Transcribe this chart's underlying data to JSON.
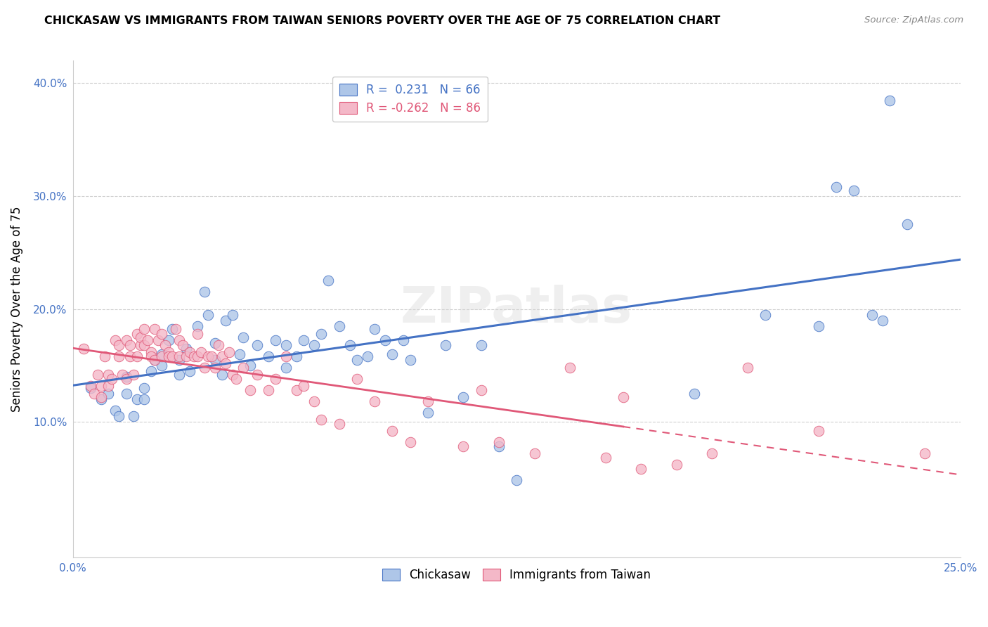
{
  "title": "CHICKASAW VS IMMIGRANTS FROM TAIWAN SENIORS POVERTY OVER THE AGE OF 75 CORRELATION CHART",
  "source": "Source: ZipAtlas.com",
  "ylabel": "Seniors Poverty Over the Age of 75",
  "xlim": [
    0.0,
    0.25
  ],
  "ylim": [
    -0.02,
    0.42
  ],
  "yticks": [
    0.1,
    0.2,
    0.3,
    0.4
  ],
  "ytick_labels": [
    "10.0%",
    "20.0%",
    "30.0%",
    "40.0%"
  ],
  "xticks": [
    0.0,
    0.05,
    0.1,
    0.15,
    0.2,
    0.25
  ],
  "xtick_labels": [
    "0.0%",
    "",
    "",
    "",
    "",
    "25.0%"
  ],
  "series1_label": "Chickasaw",
  "series2_label": "Immigrants from Taiwan",
  "R1": 0.231,
  "N1": 66,
  "R2": -0.262,
  "N2": 86,
  "color1": "#aec6e8",
  "color2": "#f4b8c8",
  "line_color1": "#4472C4",
  "line_color2": "#E05878",
  "background_color": "#ffffff",
  "grid_color": "#d0d0d0",
  "scatter1_x": [
    0.005,
    0.008,
    0.01,
    0.012,
    0.013,
    0.015,
    0.015,
    0.017,
    0.018,
    0.02,
    0.02,
    0.022,
    0.023,
    0.025,
    0.025,
    0.027,
    0.028,
    0.03,
    0.03,
    0.032,
    0.033,
    0.035,
    0.037,
    0.038,
    0.04,
    0.04,
    0.042,
    0.043,
    0.045,
    0.047,
    0.048,
    0.05,
    0.052,
    0.055,
    0.057,
    0.06,
    0.06,
    0.063,
    0.065,
    0.068,
    0.07,
    0.072,
    0.075,
    0.078,
    0.08,
    0.083,
    0.085,
    0.088,
    0.09,
    0.093,
    0.095,
    0.1,
    0.105,
    0.11,
    0.115,
    0.12,
    0.125,
    0.175,
    0.195,
    0.21,
    0.215,
    0.22,
    0.225,
    0.228,
    0.23,
    0.235
  ],
  "scatter1_y": [
    0.13,
    0.12,
    0.125,
    0.11,
    0.105,
    0.14,
    0.125,
    0.105,
    0.12,
    0.13,
    0.12,
    0.145,
    0.155,
    0.16,
    0.15,
    0.172,
    0.182,
    0.142,
    0.155,
    0.165,
    0.145,
    0.185,
    0.215,
    0.195,
    0.17,
    0.155,
    0.142,
    0.19,
    0.195,
    0.16,
    0.175,
    0.15,
    0.168,
    0.158,
    0.172,
    0.148,
    0.168,
    0.158,
    0.172,
    0.168,
    0.178,
    0.225,
    0.185,
    0.168,
    0.155,
    0.158,
    0.182,
    0.172,
    0.16,
    0.172,
    0.155,
    0.108,
    0.168,
    0.122,
    0.168,
    0.078,
    0.048,
    0.125,
    0.195,
    0.185,
    0.308,
    0.305,
    0.195,
    0.19,
    0.385,
    0.275
  ],
  "scatter2_x": [
    0.003,
    0.005,
    0.006,
    0.007,
    0.008,
    0.008,
    0.009,
    0.01,
    0.01,
    0.011,
    0.012,
    0.013,
    0.013,
    0.014,
    0.015,
    0.015,
    0.016,
    0.016,
    0.017,
    0.018,
    0.018,
    0.019,
    0.019,
    0.02,
    0.02,
    0.021,
    0.022,
    0.022,
    0.023,
    0.023,
    0.024,
    0.025,
    0.025,
    0.026,
    0.027,
    0.027,
    0.028,
    0.029,
    0.03,
    0.03,
    0.031,
    0.032,
    0.033,
    0.034,
    0.035,
    0.035,
    0.036,
    0.037,
    0.038,
    0.039,
    0.04,
    0.041,
    0.042,
    0.043,
    0.044,
    0.045,
    0.046,
    0.048,
    0.05,
    0.052,
    0.055,
    0.057,
    0.06,
    0.063,
    0.065,
    0.068,
    0.07,
    0.075,
    0.08,
    0.085,
    0.09,
    0.095,
    0.1,
    0.11,
    0.115,
    0.12,
    0.13,
    0.14,
    0.15,
    0.155,
    0.16,
    0.17,
    0.18,
    0.19,
    0.21,
    0.24
  ],
  "scatter2_y": [
    0.165,
    0.132,
    0.125,
    0.142,
    0.122,
    0.132,
    0.158,
    0.142,
    0.132,
    0.138,
    0.172,
    0.158,
    0.168,
    0.142,
    0.138,
    0.172,
    0.158,
    0.168,
    0.142,
    0.158,
    0.178,
    0.168,
    0.175,
    0.182,
    0.168,
    0.172,
    0.162,
    0.158,
    0.182,
    0.155,
    0.172,
    0.178,
    0.158,
    0.168,
    0.162,
    0.158,
    0.158,
    0.182,
    0.158,
    0.172,
    0.168,
    0.158,
    0.162,
    0.158,
    0.178,
    0.158,
    0.162,
    0.148,
    0.158,
    0.158,
    0.148,
    0.168,
    0.158,
    0.152,
    0.162,
    0.142,
    0.138,
    0.148,
    0.128,
    0.142,
    0.128,
    0.138,
    0.158,
    0.128,
    0.132,
    0.118,
    0.102,
    0.098,
    0.138,
    0.118,
    0.092,
    0.082,
    0.118,
    0.078,
    0.128,
    0.082,
    0.072,
    0.148,
    0.068,
    0.122,
    0.058,
    0.062,
    0.072,
    0.148,
    0.092,
    0.072
  ]
}
